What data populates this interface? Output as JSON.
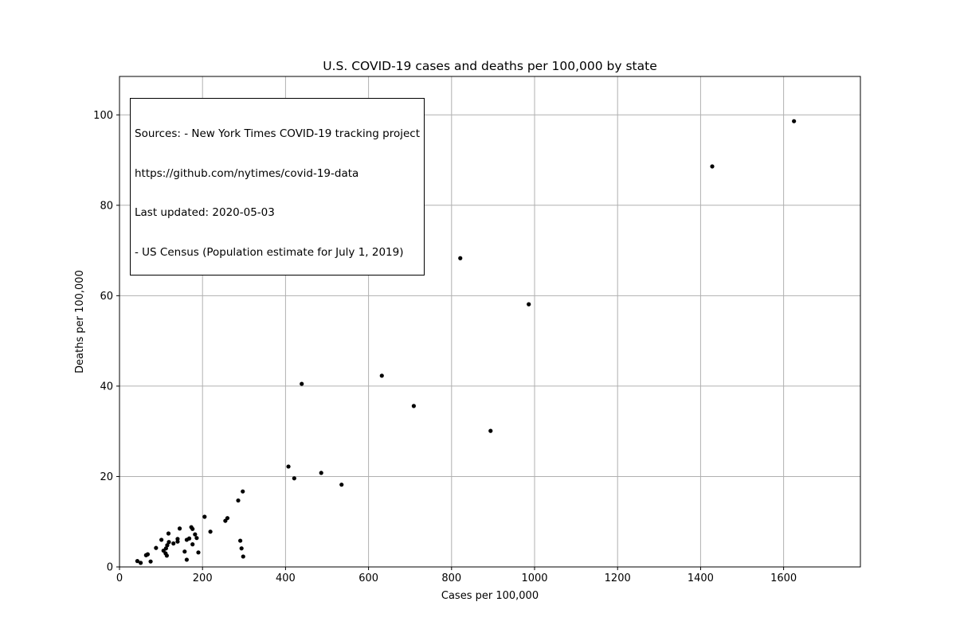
{
  "chart_data": {
    "type": "scatter",
    "title": "U.S. COVID-19 cases and deaths per 100,000 by state",
    "xlabel": "Cases per 100,000",
    "ylabel": "Deaths per 100,000",
    "xlim": [
      0,
      1785
    ],
    "ylim": [
      0,
      108.5
    ],
    "xticks": [
      0,
      200,
      400,
      600,
      800,
      1000,
      1200,
      1400,
      1600
    ],
    "yticks": [
      0,
      20,
      40,
      60,
      80,
      100
    ],
    "grid": true,
    "marker_color": "#000000",
    "grid_color": "#b0b0b0",
    "annotation": [
      "Sources: - New York Times COVID-19 tracking project",
      "https://github.com/nytimes/covid-19-data",
      "Last updated: 2020-05-03",
      "- US Census (Population estimate for July 1, 2019)"
    ],
    "points": [
      {
        "x": 1625,
        "y": 98.6
      },
      {
        "x": 1428,
        "y": 88.6
      },
      {
        "x": 821,
        "y": 68.3
      },
      {
        "x": 986,
        "y": 58.1
      },
      {
        "x": 632,
        "y": 42.3
      },
      {
        "x": 439,
        "y": 40.5
      },
      {
        "x": 709,
        "y": 35.6
      },
      {
        "x": 894,
        "y": 30.1
      },
      {
        "x": 407,
        "y": 22.2
      },
      {
        "x": 486,
        "y": 20.8
      },
      {
        "x": 421,
        "y": 19.6
      },
      {
        "x": 535,
        "y": 18.2
      },
      {
        "x": 297,
        "y": 16.7
      },
      {
        "x": 286,
        "y": 14.7
      },
      {
        "x": 205,
        "y": 11.1
      },
      {
        "x": 260,
        "y": 10.8
      },
      {
        "x": 255,
        "y": 10.2
      },
      {
        "x": 173,
        "y": 8.8
      },
      {
        "x": 176,
        "y": 8.4
      },
      {
        "x": 145,
        "y": 8.5
      },
      {
        "x": 219,
        "y": 7.8
      },
      {
        "x": 118,
        "y": 7.4
      },
      {
        "x": 182,
        "y": 7.2
      },
      {
        "x": 186,
        "y": 6.4
      },
      {
        "x": 168,
        "y": 6.3
      },
      {
        "x": 162,
        "y": 6.0
      },
      {
        "x": 140,
        "y": 6.2
      },
      {
        "x": 101,
        "y": 6.0
      },
      {
        "x": 140,
        "y": 5.6
      },
      {
        "x": 119,
        "y": 5.5
      },
      {
        "x": 130,
        "y": 5.2
      },
      {
        "x": 291,
        "y": 5.8
      },
      {
        "x": 176,
        "y": 5.0
      },
      {
        "x": 115,
        "y": 4.8
      },
      {
        "x": 88,
        "y": 4.2
      },
      {
        "x": 112,
        "y": 4.1
      },
      {
        "x": 106,
        "y": 3.6
      },
      {
        "x": 294,
        "y": 4.1
      },
      {
        "x": 157,
        "y": 3.4
      },
      {
        "x": 190,
        "y": 3.2
      },
      {
        "x": 111,
        "y": 3.0
      },
      {
        "x": 68,
        "y": 2.8
      },
      {
        "x": 64,
        "y": 2.6
      },
      {
        "x": 114,
        "y": 2.5
      },
      {
        "x": 298,
        "y": 2.3
      },
      {
        "x": 162,
        "y": 1.6
      },
      {
        "x": 43,
        "y": 1.3
      },
      {
        "x": 75,
        "y": 1.2
      },
      {
        "x": 51,
        "y": 0.9
      }
    ]
  }
}
